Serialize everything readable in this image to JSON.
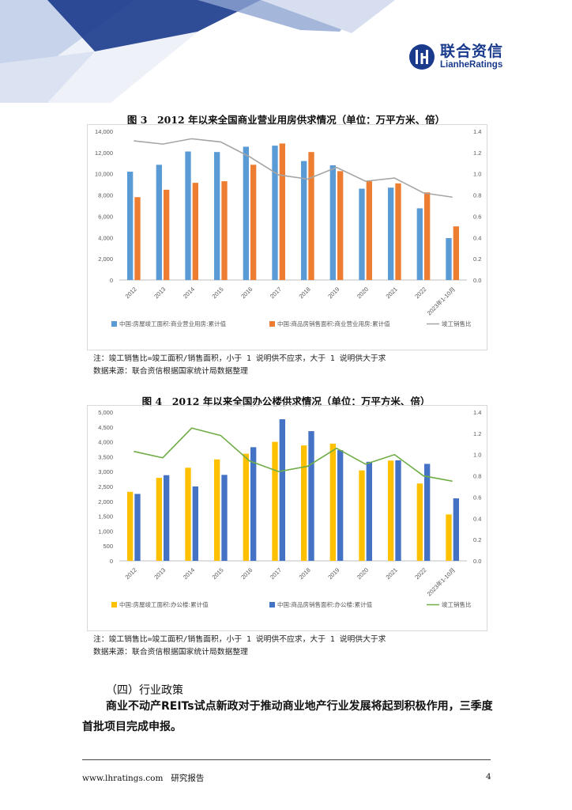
{
  "header": {
    "logo_cn": "联合资信",
    "logo_en": "LianheRatings",
    "colors": {
      "navy": "#1a3a8c",
      "light_blue": "#c7d3ea"
    }
  },
  "figure3": {
    "title": "图 3　2012 年以来全国商业营业用房供求情况（单位：万平方米、倍）",
    "note": "注：竣工销售比=竣工面积/销售面积，小于 1 说明供不应求，大于 1 说明供大于求",
    "source": "数据来源：联合资信根据国家统计局数据整理"
  },
  "figure4": {
    "title": "图 4　2012 年以来全国办公楼供求情况（单位：万平方米、倍）",
    "note": "注：竣工销售比=竣工面积/销售面积，小于 1 说明供不应求，大于 1 说明供大于求",
    "source": "数据来源：联合资信根据国家统计局数据整理"
  },
  "section_heading": "（四）行业政策",
  "paragraph": "商业不动产REITs试点新政对于推动商业地产行业发展将起到积极作用，三季度首批项目完成申报。",
  "footer": {
    "website": "www.lhratings.com",
    "doc_type": "研究报告",
    "page": "4"
  },
  "chart_data": [
    {
      "type": "bar",
      "title": "图 3　2012 年以来全国商业营业用房供求情况（单位：万平方米、倍）",
      "categories": [
        "2012",
        "2013",
        "2014",
        "2015",
        "2016",
        "2017",
        "2018",
        "2019",
        "2020",
        "2021",
        "2022",
        "2023年1-10月"
      ],
      "series": [
        {
          "name": "中国:房屋竣工面积:商业营业用房:累计值",
          "type": "bar",
          "axis": "left",
          "color": "#5b9bd5",
          "values": [
            10200,
            10850,
            12100,
            12050,
            12550,
            12650,
            11200,
            10800,
            8600,
            8700,
            6750,
            3950
          ]
        },
        {
          "name": "中国:商品房销售面积:商业营业用房:累计值",
          "type": "bar",
          "axis": "left",
          "color": "#ed7d31",
          "values": [
            7800,
            8500,
            9150,
            9300,
            10850,
            12850,
            12050,
            10250,
            9300,
            9100,
            8250,
            5050
          ]
        },
        {
          "name": "竣工销售比",
          "type": "line",
          "axis": "right",
          "color": "#a5a5a5",
          "values": [
            1.31,
            1.28,
            1.33,
            1.3,
            1.16,
            0.99,
            0.95,
            1.06,
            0.93,
            0.96,
            0.82,
            0.78
          ]
        }
      ],
      "ylim": [
        0,
        14000
      ],
      "yticks": [
        "0",
        "2,000",
        "4,000",
        "6,000",
        "8,000",
        "10,000",
        "12,000",
        "14,000"
      ],
      "y2lim": [
        0,
        1.4
      ],
      "y2ticks": [
        "0.0",
        "0.2",
        "0.4",
        "0.6",
        "0.8",
        "1.0",
        "1.2",
        "1.4"
      ],
      "legend": "bottom",
      "grid": false
    },
    {
      "type": "bar",
      "title": "图 4　2012 年以来全国办公楼供求情况（单位：万平方米、倍）",
      "categories": [
        "2012",
        "2013",
        "2014",
        "2015",
        "2016",
        "2017",
        "2018",
        "2019",
        "2020",
        "2021",
        "2022",
        "2023年1-10月"
      ],
      "series": [
        {
          "name": "中国:房屋竣工面积:办公楼:累计值",
          "type": "bar",
          "axis": "left",
          "color": "#ffc000",
          "values": [
            2320,
            2790,
            3130,
            3410,
            3600,
            4000,
            3880,
            3940,
            3040,
            3370,
            2600,
            1560
          ]
        },
        {
          "name": "中国:商品房销售面积:办公楼:累计值",
          "type": "bar",
          "axis": "left",
          "color": "#4472c4",
          "values": [
            2250,
            2880,
            2500,
            2890,
            3820,
            4760,
            4360,
            3720,
            3330,
            3380,
            3260,
            2100
          ]
        },
        {
          "name": "竣工销售比",
          "type": "line",
          "axis": "right",
          "color": "#70ad47",
          "values": [
            1.03,
            0.97,
            1.25,
            1.18,
            0.94,
            0.84,
            0.89,
            1.06,
            0.91,
            1.0,
            0.8,
            0.75
          ]
        }
      ],
      "ylim": [
        0,
        5000
      ],
      "yticks": [
        "0",
        "500",
        "1,000",
        "1,500",
        "2,000",
        "2,500",
        "3,000",
        "3,500",
        "4,000",
        "4,500",
        "5,000"
      ],
      "y2lim": [
        0,
        1.4
      ],
      "y2ticks": [
        "0.0",
        "0.2",
        "0.4",
        "0.6",
        "0.8",
        "1.0",
        "1.2",
        "1.4"
      ],
      "legend": "bottom",
      "grid": false
    }
  ]
}
